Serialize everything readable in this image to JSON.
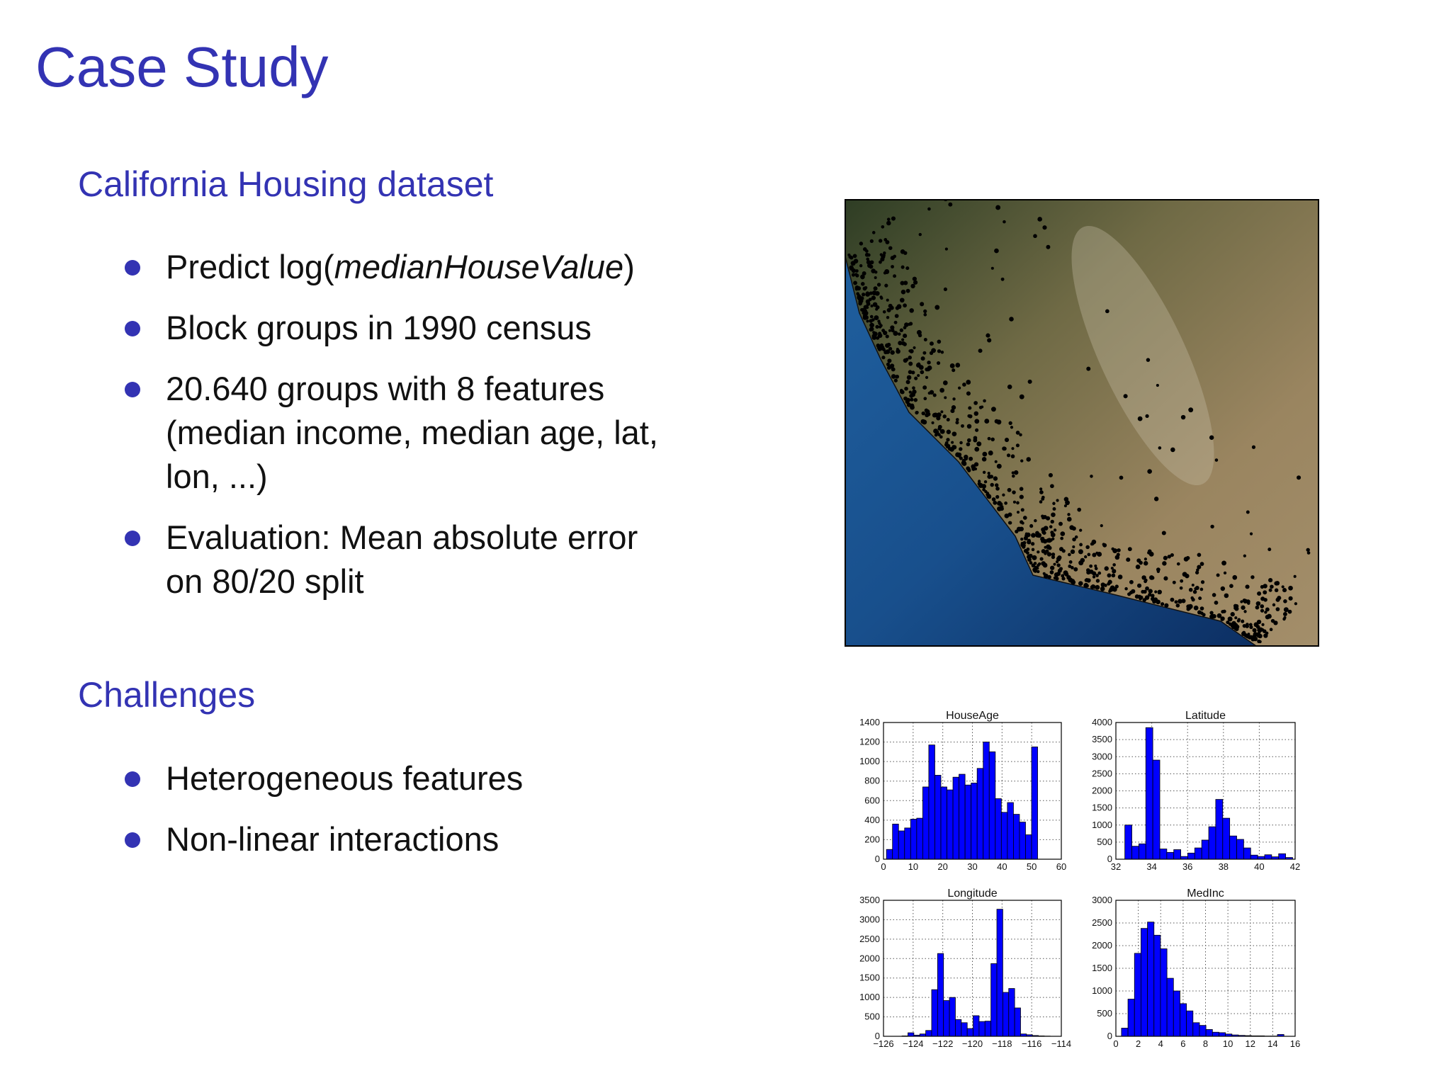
{
  "header": {
    "title": "Case Study"
  },
  "sections": [
    {
      "heading": "California Housing dataset",
      "bullets": [
        {
          "parts": [
            "Predict log(",
            "medianHouseValue",
            ")"
          ]
        },
        {
          "lines": [
            "Block groups in 1990 census"
          ]
        },
        {
          "lines": [
            "20.640 groups with 8 features",
            "(median income, median age, lat,",
            "lon, ...)"
          ]
        },
        {
          "lines": [
            "Evaluation: Mean absolute error",
            "on 80/20 split"
          ]
        }
      ]
    },
    {
      "heading": "Challenges",
      "bullets": [
        {
          "lines": [
            "Heterogeneous features"
          ]
        },
        {
          "lines": [
            "Non-linear interactions"
          ]
        }
      ]
    }
  ],
  "chart_data": [
    {
      "type": "histogram",
      "title": "HouseAge",
      "color": "#0000ff",
      "grid": true,
      "bins": [
        1,
        3.04,
        5.08,
        7.12,
        9.16,
        11.2,
        13.24,
        15.28,
        17.32,
        19.36,
        21.4,
        23.44,
        25.48,
        27.52,
        29.56,
        31.6,
        33.64,
        35.68,
        37.72,
        39.76,
        41.8,
        43.84,
        45.88,
        47.92,
        49.96,
        52
      ],
      "values": [
        100,
        360,
        290,
        320,
        410,
        420,
        740,
        1170,
        860,
        740,
        710,
        840,
        870,
        760,
        780,
        930,
        1200,
        1100,
        620,
        480,
        580,
        460,
        380,
        250,
        1150
      ],
      "xlim": [
        0,
        60
      ],
      "xticks": [
        0,
        10,
        20,
        30,
        40,
        50,
        60
      ],
      "ylim": [
        0,
        1400
      ],
      "yticks": [
        0,
        200,
        400,
        600,
        800,
        1000,
        1200,
        1400
      ]
    },
    {
      "type": "histogram",
      "title": "Latitude",
      "color": "#0000ff",
      "grid": true,
      "bins": [
        32.5,
        32.89,
        33.28,
        33.67,
        34.06,
        34.45,
        34.84,
        35.23,
        35.62,
        36.01,
        36.4,
        36.79,
        37.18,
        37.57,
        37.96,
        38.35,
        38.74,
        39.13,
        39.52,
        39.91,
        40.3,
        40.69,
        41.08,
        41.47,
        41.86
      ],
      "values": [
        1000,
        380,
        450,
        3850,
        2900,
        300,
        200,
        280,
        80,
        180,
        330,
        560,
        950,
        1750,
        1200,
        680,
        580,
        330,
        120,
        80,
        130,
        70,
        160,
        50
      ],
      "xlim": [
        32,
        42
      ],
      "xticks": [
        32,
        34,
        36,
        38,
        40,
        42
      ],
      "ylim": [
        0,
        4000
      ],
      "yticks": [
        0,
        500,
        1000,
        1500,
        2000,
        2500,
        3000,
        3500,
        4000
      ]
    },
    {
      "type": "histogram",
      "title": "Longitude",
      "color": "#0000ff",
      "grid": true,
      "bins": [
        -124.75,
        -124.35,
        -123.95,
        -123.55,
        -123.15,
        -122.75,
        -122.35,
        -121.95,
        -121.55,
        -121.15,
        -120.75,
        -120.35,
        -119.95,
        -119.55,
        -119.15,
        -118.75,
        -118.35,
        -117.95,
        -117.55,
        -117.15,
        -116.75,
        -116.35,
        -115.95,
        -115.55,
        -115.15,
        -114.75
      ],
      "values": [
        10,
        90,
        30,
        60,
        150,
        1200,
        2130,
        920,
        1000,
        430,
        350,
        200,
        530,
        380,
        390,
        1870,
        3270,
        1130,
        1230,
        730,
        60,
        40,
        20,
        10,
        5
      ],
      "xlim": [
        -126,
        -114
      ],
      "xticks": [
        {
          "value": -126,
          "label": "−126"
        },
        {
          "value": -124,
          "label": "−124"
        },
        {
          "value": -122,
          "label": "−122"
        },
        {
          "value": -120,
          "label": "−120"
        },
        {
          "value": -118,
          "label": "−118"
        },
        {
          "value": -116,
          "label": "−116"
        },
        {
          "value": -114,
          "label": "−114"
        }
      ],
      "ylim": [
        0,
        3500
      ],
      "yticks": [
        0,
        500,
        1000,
        1500,
        2000,
        2500,
        3000,
        3500
      ]
    },
    {
      "type": "histogram",
      "title": "MedInc",
      "color": "#0000ff",
      "grid": true,
      "bins": [
        0.5,
        1.08,
        1.66,
        2.24,
        2.82,
        3.4,
        3.98,
        4.56,
        5.14,
        5.72,
        6.3,
        6.88,
        7.46,
        8.04,
        8.62,
        9.2,
        9.78,
        10.36,
        10.94,
        11.52,
        12.1,
        12.68,
        13.26,
        13.84,
        14.42,
        15
      ],
      "values": [
        180,
        820,
        1830,
        2380,
        2520,
        2230,
        1930,
        1280,
        1000,
        720,
        560,
        300,
        240,
        150,
        90,
        80,
        50,
        30,
        20,
        15,
        10,
        10,
        5,
        5,
        40
      ],
      "xlim": [
        0,
        16
      ],
      "xticks": [
        0,
        2,
        4,
        6,
        8,
        10,
        12,
        14,
        16
      ],
      "ylim": [
        0,
        3000
      ],
      "yticks": [
        0,
        500,
        1000,
        1500,
        2000,
        2500,
        3000
      ]
    }
  ]
}
